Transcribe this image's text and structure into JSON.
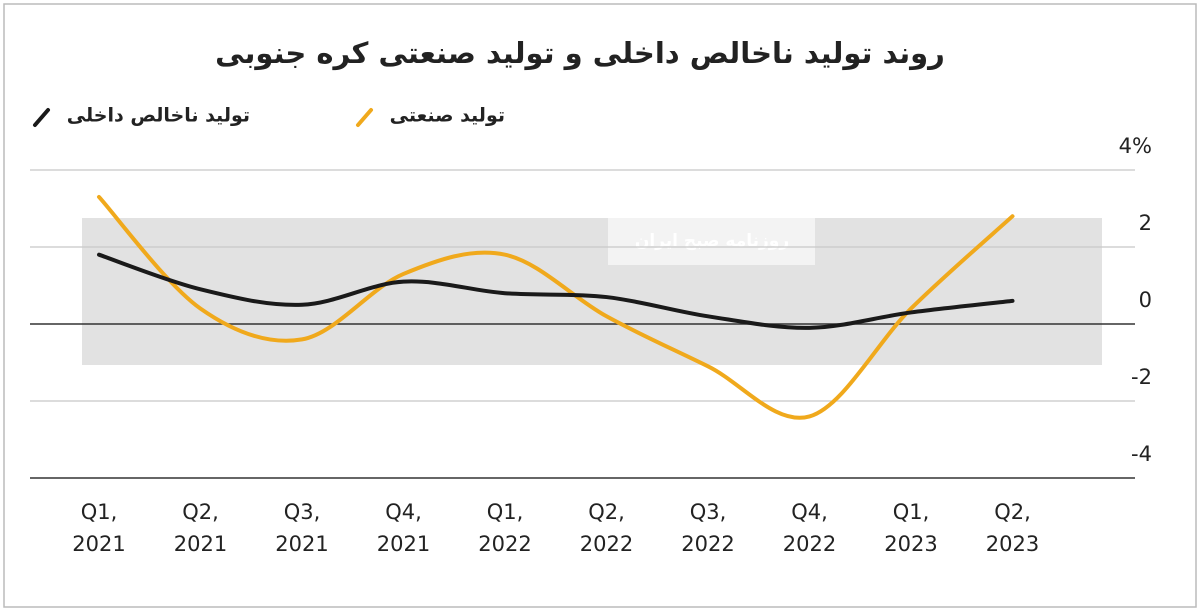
{
  "watermark": "روزنامه صبح ایران",
  "chart_data": {
    "type": "line",
    "title": "روند تولید ناخالص داخلی و تولید صنعتی کره جنوبی",
    "categories": [
      "Q1, 2021",
      "Q2, 2021",
      "Q3, 2021",
      "Q4, 2021",
      "Q1, 2022",
      "Q2, 2022",
      "Q3, 2022",
      "Q4, 2022",
      "Q1, 2023",
      "Q2, 2023"
    ],
    "series": [
      {
        "name": "تولید ناخالص داخلی",
        "color": "#1a1a1a",
        "values": [
          1.8,
          0.9,
          0.5,
          1.1,
          0.8,
          0.7,
          0.2,
          -0.1,
          0.3,
          0.6
        ]
      },
      {
        "name": "تولید صنعتی",
        "color": "#f0a91c",
        "values": [
          3.3,
          0.4,
          -0.4,
          1.3,
          1.8,
          0.2,
          -1.1,
          -2.4,
          0.4,
          2.8
        ]
      }
    ],
    "ylim": [
      -4,
      4
    ],
    "yticks": [
      {
        "value": 4,
        "label": "4%"
      },
      2,
      0,
      -2,
      -4
    ],
    "grid": true,
    "legend": "top-left"
  }
}
